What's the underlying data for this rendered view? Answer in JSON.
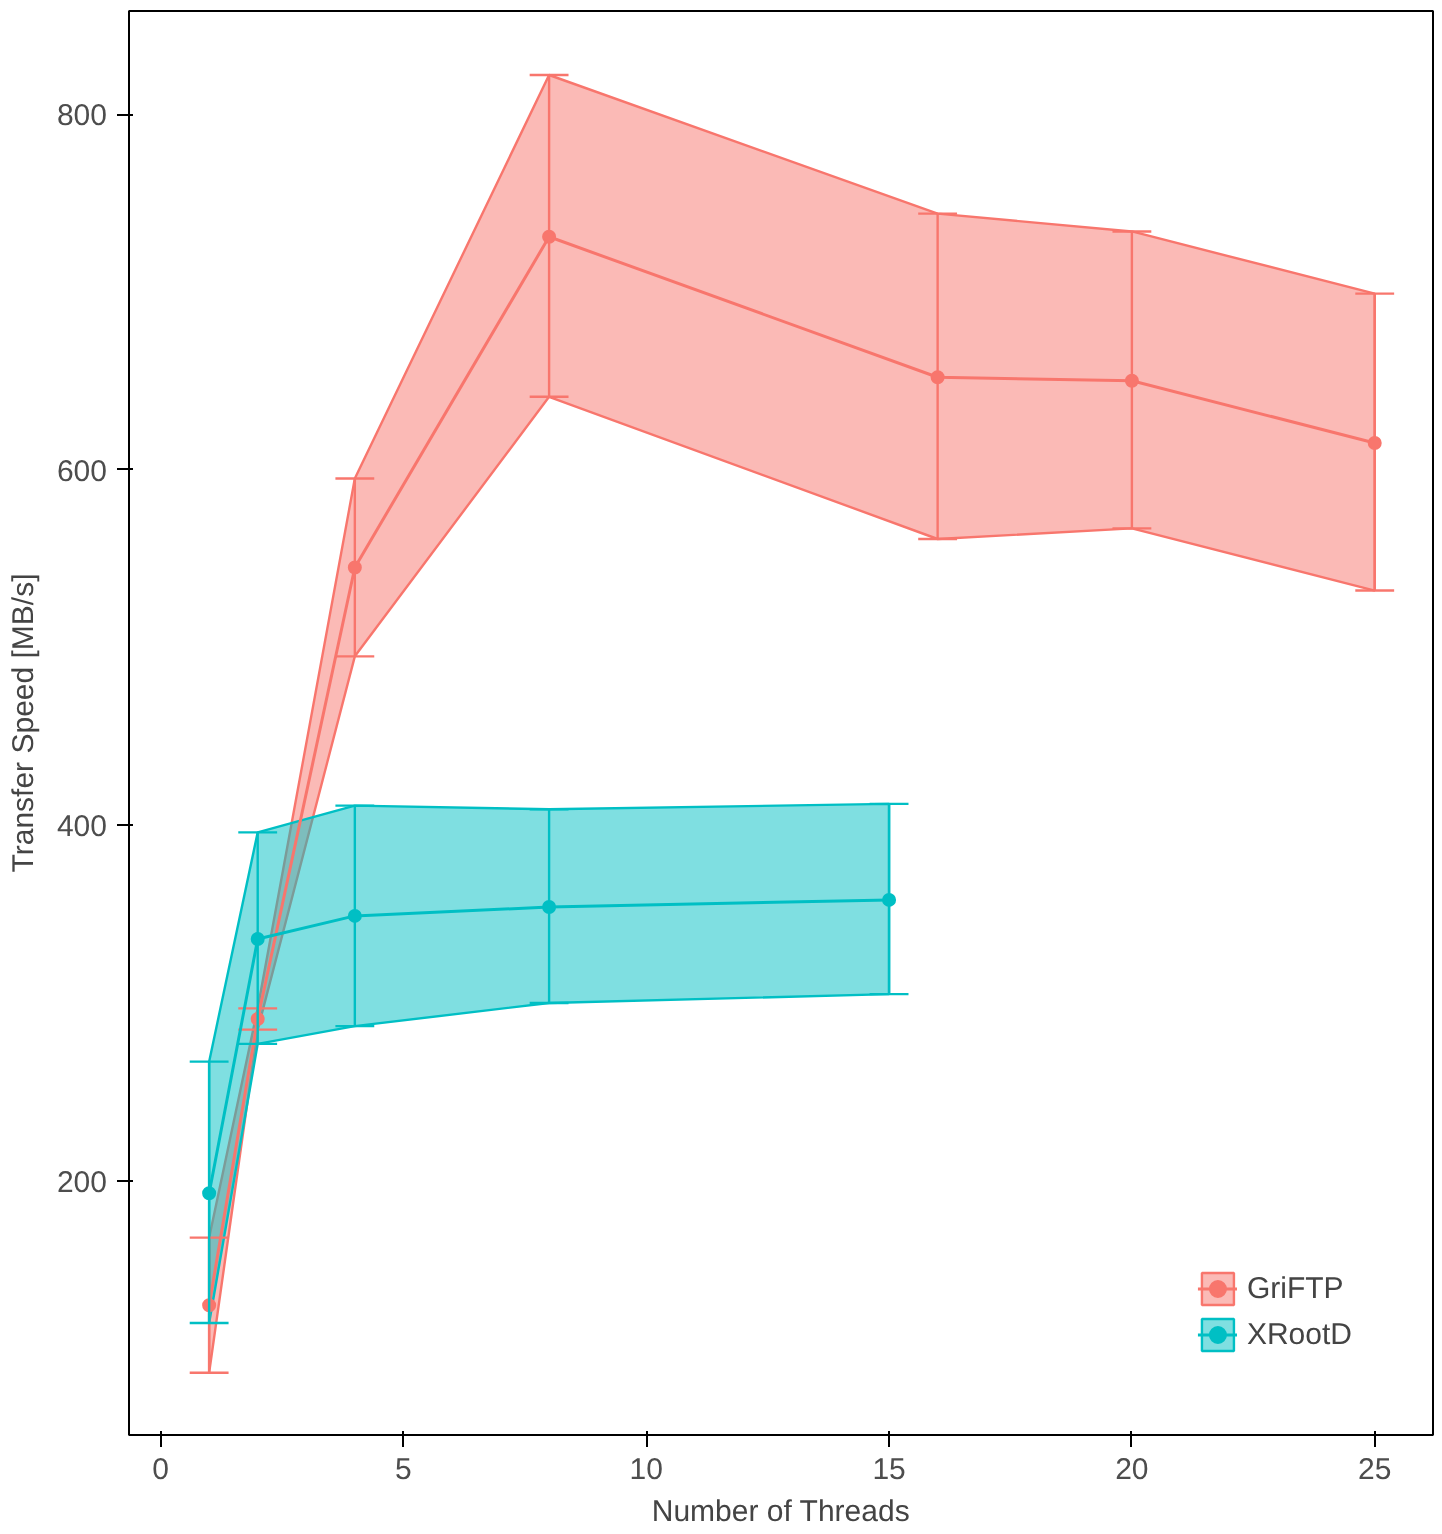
{
  "chart_data": {
    "type": "line",
    "xlabel": "Number of Threads",
    "ylabel": "Transfer Speed [MB/s]",
    "xlim": [
      -0.65,
      26.2
    ],
    "ylim": [
      57,
      858
    ],
    "xticks": [
      0,
      5,
      10,
      15,
      20,
      25
    ],
    "yticks": [
      200,
      400,
      600,
      800
    ],
    "grid": false,
    "legend": "bottom right",
    "marker": "circle",
    "line_style": "solid",
    "series": [
      {
        "name": "GriFTP",
        "color": "#f8766d",
        "x": [
          1,
          2,
          4,
          8,
          16,
          20,
          25
        ],
        "values": [
          130,
          291,
          545,
          731,
          652,
          650,
          615
        ],
        "errors": [
          [
            92,
            168
          ],
          [
            285,
            297
          ],
          [
            495,
            595
          ],
          [
            641,
            822
          ],
          [
            561,
            744
          ],
          [
            567,
            734
          ],
          [
            532,
            699
          ]
        ],
        "lower": [
          92,
          285,
          495,
          641,
          561,
          567,
          532
        ],
        "upper": [
          168,
          297,
          595,
          822,
          744,
          734,
          699
        ]
      },
      {
        "name": "XRootD",
        "color": "#00bfc4",
        "x": [
          1,
          2,
          4,
          8,
          15
        ],
        "values": [
          193,
          336,
          349,
          354,
          358
        ],
        "errors": [
          [
            120,
            267
          ],
          [
            277,
            396
          ],
          [
            287,
            411
          ],
          [
            300,
            409
          ],
          [
            305,
            412
          ]
        ],
        "lower": [
          120,
          277,
          287,
          300,
          305
        ],
        "upper": [
          267,
          396,
          411,
          409,
          412
        ]
      }
    ]
  }
}
